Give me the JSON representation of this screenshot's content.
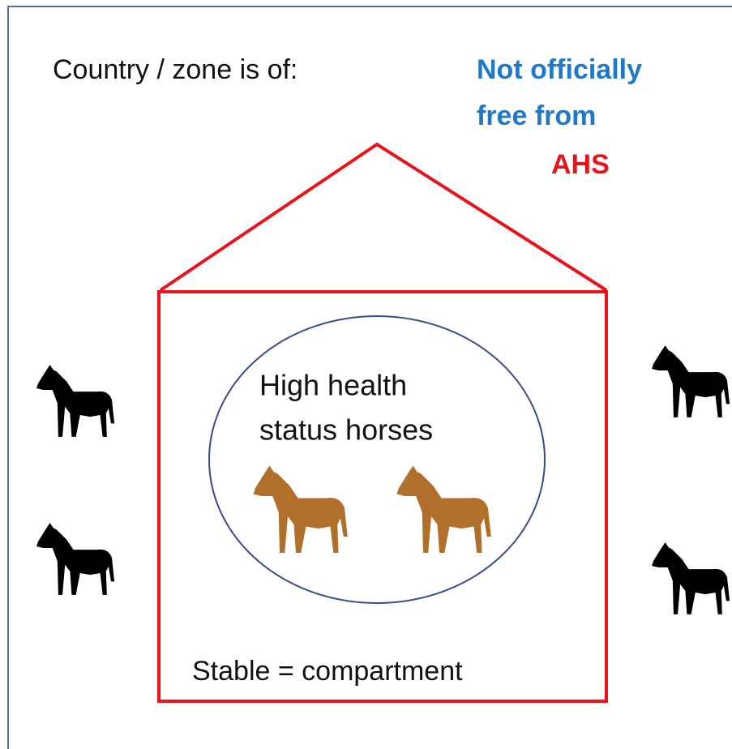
{
  "header": {
    "label": "Country / zone is of:",
    "status": [
      "Not officially",
      "free from",
      "AHS"
    ]
  },
  "compartment": {
    "inner_label": [
      "High health",
      "status horses"
    ],
    "label": "Stable = compartment"
  }
}
